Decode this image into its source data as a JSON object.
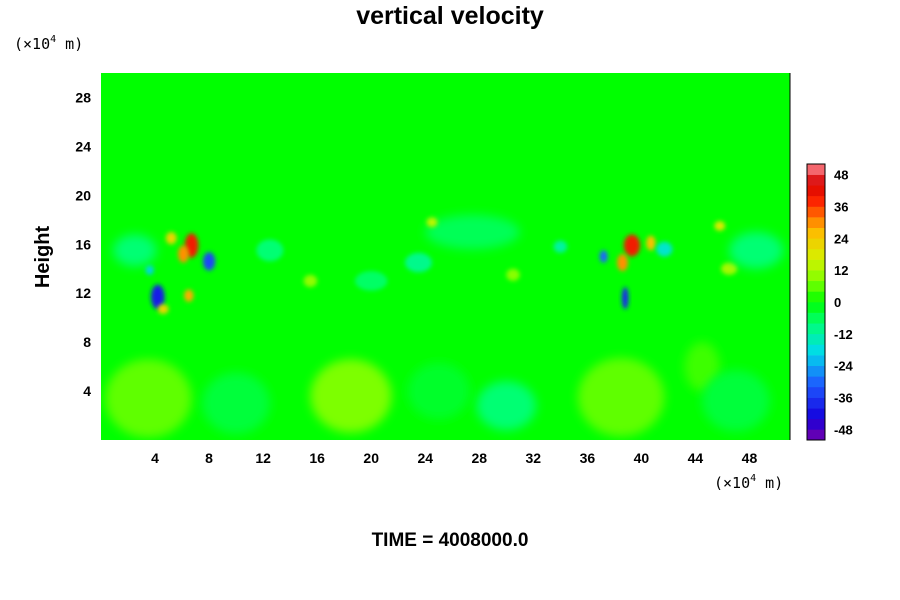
{
  "chart_data": {
    "type": "heatmap",
    "title": "vertical velocity",
    "ylabel": "Height",
    "xlabel": "",
    "x_unit": {
      "prefix": "(×10",
      "exp": "4",
      "suffix": " m)"
    },
    "y_unit": {
      "prefix": "(×10",
      "exp": "4",
      "suffix": " m)"
    },
    "x_ticks": [
      4,
      8,
      12,
      16,
      20,
      24,
      28,
      32,
      36,
      40,
      44,
      48
    ],
    "y_ticks": [
      4,
      8,
      12,
      16,
      20,
      24,
      28
    ],
    "xlim": [
      0,
      51
    ],
    "ylim": [
      0,
      30
    ],
    "colorbar": {
      "ticks": [
        48,
        36,
        24,
        12,
        0,
        -12,
        -24,
        -36,
        -48
      ],
      "range": [
        -52,
        52
      ],
      "levels": 26
    },
    "background_value": 0,
    "features": [
      {
        "x": 3.5,
        "y": 3.4,
        "rx": 3.2,
        "ry": 3.2,
        "value": 6
      },
      {
        "x": 18.5,
        "y": 3.6,
        "rx": 3.0,
        "ry": 3.0,
        "value": 8
      },
      {
        "x": 38.5,
        "y": 3.5,
        "rx": 3.2,
        "ry": 3.2,
        "value": 6
      },
      {
        "x": 44.5,
        "y": 6.0,
        "rx": 1.3,
        "ry": 2.0,
        "value": 4
      },
      {
        "x": 30.0,
        "y": 2.8,
        "rx": 2.2,
        "ry": 2.0,
        "value": -8
      },
      {
        "x": 10.0,
        "y": 3.0,
        "rx": 2.5,
        "ry": 2.5,
        "value": -4
      },
      {
        "x": 25.0,
        "y": 4.0,
        "rx": 2.3,
        "ry": 2.3,
        "value": -3
      },
      {
        "x": 47.0,
        "y": 3.2,
        "rx": 2.5,
        "ry": 2.5,
        "value": -4
      },
      {
        "x": 6.7,
        "y": 15.9,
        "rx": 0.5,
        "ry": 1.0,
        "value": 40
      },
      {
        "x": 6.1,
        "y": 15.2,
        "rx": 0.4,
        "ry": 0.7,
        "value": 30
      },
      {
        "x": 5.2,
        "y": 16.5,
        "rx": 0.4,
        "ry": 0.5,
        "value": 22
      },
      {
        "x": 8.0,
        "y": 14.6,
        "rx": 0.45,
        "ry": 0.75,
        "value": -34
      },
      {
        "x": 4.2,
        "y": 11.7,
        "rx": 0.5,
        "ry": 1.0,
        "value": -40
      },
      {
        "x": 3.6,
        "y": 13.9,
        "rx": 0.3,
        "ry": 0.4,
        "value": -20
      },
      {
        "x": 6.5,
        "y": 11.8,
        "rx": 0.35,
        "ry": 0.5,
        "value": 28
      },
      {
        "x": 4.6,
        "y": 10.7,
        "rx": 0.4,
        "ry": 0.4,
        "value": 22
      },
      {
        "x": 2.5,
        "y": 15.5,
        "rx": 1.6,
        "ry": 1.3,
        "value": -8
      },
      {
        "x": 39.3,
        "y": 15.9,
        "rx": 0.6,
        "ry": 0.9,
        "value": 40
      },
      {
        "x": 38.6,
        "y": 14.5,
        "rx": 0.4,
        "ry": 0.7,
        "value": 30
      },
      {
        "x": 40.7,
        "y": 16.1,
        "rx": 0.35,
        "ry": 0.6,
        "value": 26
      },
      {
        "x": 37.2,
        "y": 15.0,
        "rx": 0.3,
        "ry": 0.5,
        "value": -30
      },
      {
        "x": 38.8,
        "y": 11.6,
        "rx": 0.25,
        "ry": 0.9,
        "value": -38
      },
      {
        "x": 41.7,
        "y": 15.6,
        "rx": 0.6,
        "ry": 0.6,
        "value": -16
      },
      {
        "x": 45.8,
        "y": 17.5,
        "rx": 0.4,
        "ry": 0.4,
        "value": 18
      },
      {
        "x": 46.5,
        "y": 14.0,
        "rx": 0.6,
        "ry": 0.5,
        "value": 12
      },
      {
        "x": 48.5,
        "y": 15.5,
        "rx": 2.0,
        "ry": 1.5,
        "value": -8
      },
      {
        "x": 27.5,
        "y": 17.0,
        "rx": 3.5,
        "ry": 1.4,
        "value": -6
      },
      {
        "x": 23.5,
        "y": 14.5,
        "rx": 1.0,
        "ry": 0.8,
        "value": -10
      },
      {
        "x": 24.5,
        "y": 17.8,
        "rx": 0.4,
        "ry": 0.4,
        "value": 14
      },
      {
        "x": 12.5,
        "y": 15.5,
        "rx": 1.0,
        "ry": 0.9,
        "value": -8
      },
      {
        "x": 15.5,
        "y": 13.0,
        "rx": 0.5,
        "ry": 0.5,
        "value": 10
      },
      {
        "x": 30.5,
        "y": 13.5,
        "rx": 0.5,
        "ry": 0.5,
        "value": 9
      },
      {
        "x": 34.0,
        "y": 15.8,
        "rx": 0.5,
        "ry": 0.5,
        "value": -12
      },
      {
        "x": 20.0,
        "y": 13.0,
        "rx": 1.2,
        "ry": 0.8,
        "value": -7
      }
    ]
  },
  "footer": {
    "time_label": "TIME = 4008000.0"
  }
}
